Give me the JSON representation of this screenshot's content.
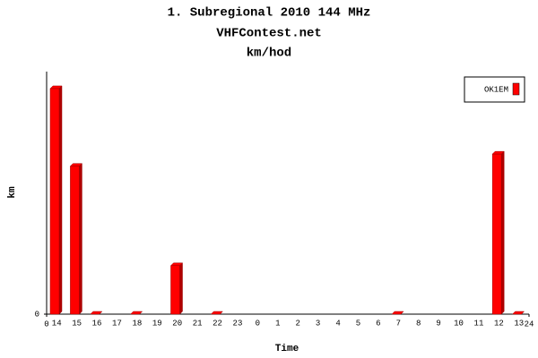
{
  "chart_data": {
    "type": "bar3d",
    "title": "1. Subregional 2010 144 MHz",
    "subtitle": "VHFContest.net",
    "unit_title": "km/hod",
    "y_label": "km",
    "x_label": "Time",
    "categories": [
      "14",
      "15",
      "16",
      "17",
      "18",
      "19",
      "20",
      "21",
      "22",
      "23",
      "0",
      "1",
      "2",
      "3",
      "4",
      "5",
      "6",
      "7",
      "8",
      "9",
      "10",
      "11",
      "12",
      "13"
    ],
    "series": [
      {
        "name": "OK1EM",
        "color": "#ff0000",
        "values": [
          93,
          61,
          0,
          null,
          0,
          null,
          20,
          null,
          0,
          null,
          null,
          null,
          null,
          null,
          null,
          null,
          null,
          0,
          null,
          null,
          null,
          null,
          66,
          0
        ]
      }
    ],
    "ylim": [
      0,
      100
    ],
    "yticks": [
      0
    ],
    "xlim": [
      0,
      24
    ],
    "xticks": [
      0,
      24
    ],
    "legend": "top-right"
  }
}
